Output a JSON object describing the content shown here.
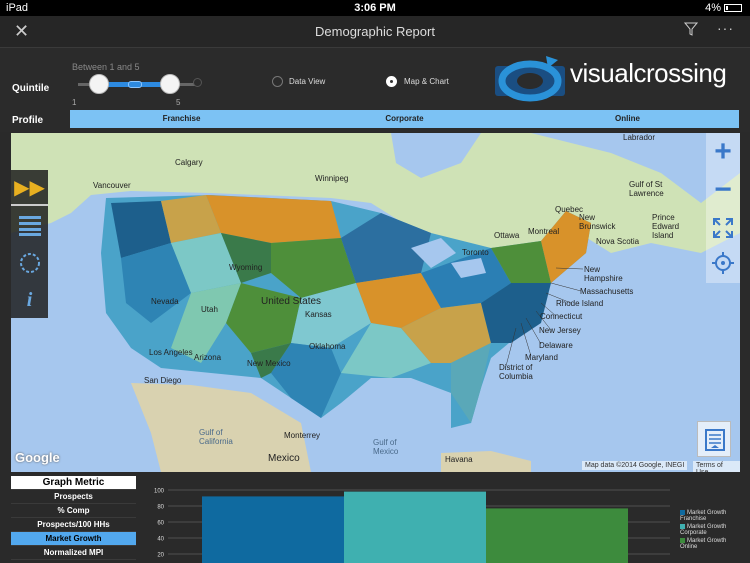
{
  "status": {
    "carrier": "iPad",
    "time": "3:06 PM",
    "battery": "4%"
  },
  "nav": {
    "title": "Demographic Report",
    "close": "✕",
    "more": "···"
  },
  "controls": {
    "quintile_label": "Quintile",
    "slider_caption": "Between 1 and 5",
    "slider_min": "1",
    "slider_max": "5",
    "data_view": "Data View",
    "map_chart": "Map & Chart",
    "profile_label": "Profile",
    "profiles": [
      "Franchise",
      "Corporate",
      "Online"
    ]
  },
  "logo": {
    "text": "visualcrossing"
  },
  "map": {
    "labels": [
      "Labrador",
      "Calgary",
      "Vancouver",
      "Winnipeg",
      "Quebec",
      "Gulf of St Lawrence",
      "Prince Edward Island",
      "New Brunswick",
      "Nova Scotia",
      "Ottawa",
      "Montreal",
      "Toronto",
      "New Hampshire",
      "Massachusetts",
      "Rhode Island",
      "Connecticut",
      "New Jersey",
      "Delaware",
      "Maryland",
      "District of Columbia",
      "Nevada",
      "Utah",
      "United States",
      "Kansas",
      "Oklahoma",
      "Arizona",
      "New Mexico",
      "Los Angeles",
      "San Diego",
      "Gulf of California",
      "Monterrey",
      "Mexico",
      "Gulf of Mexico",
      "Havana",
      "Wyoming"
    ],
    "attribution": "Map data ©2014 Google, INEGI",
    "terms": "Terms of Use",
    "google": "Google"
  },
  "metrics": {
    "header": "Graph Metric",
    "items": [
      "Prospects",
      "% Comp",
      "Prospects/100 HHs",
      "Market Growth",
      "Normalized MPI"
    ],
    "selected": "Market Growth"
  },
  "chart_data": {
    "type": "bar",
    "categories": [
      "Market Growth Franchise",
      "Market Growth Corporate",
      "Market Growth Online"
    ],
    "values": [
      92,
      98,
      77
    ],
    "yticks": [
      "100",
      "80",
      "60",
      "40",
      "20"
    ],
    "ylim": [
      0,
      100
    ],
    "colors": [
      "#0f6aa0",
      "#3fb0b0",
      "#3d8b3d"
    ],
    "legend": [
      "Market Growth Franchise",
      "Market Growth Corporate",
      "Market Growth Online"
    ]
  }
}
